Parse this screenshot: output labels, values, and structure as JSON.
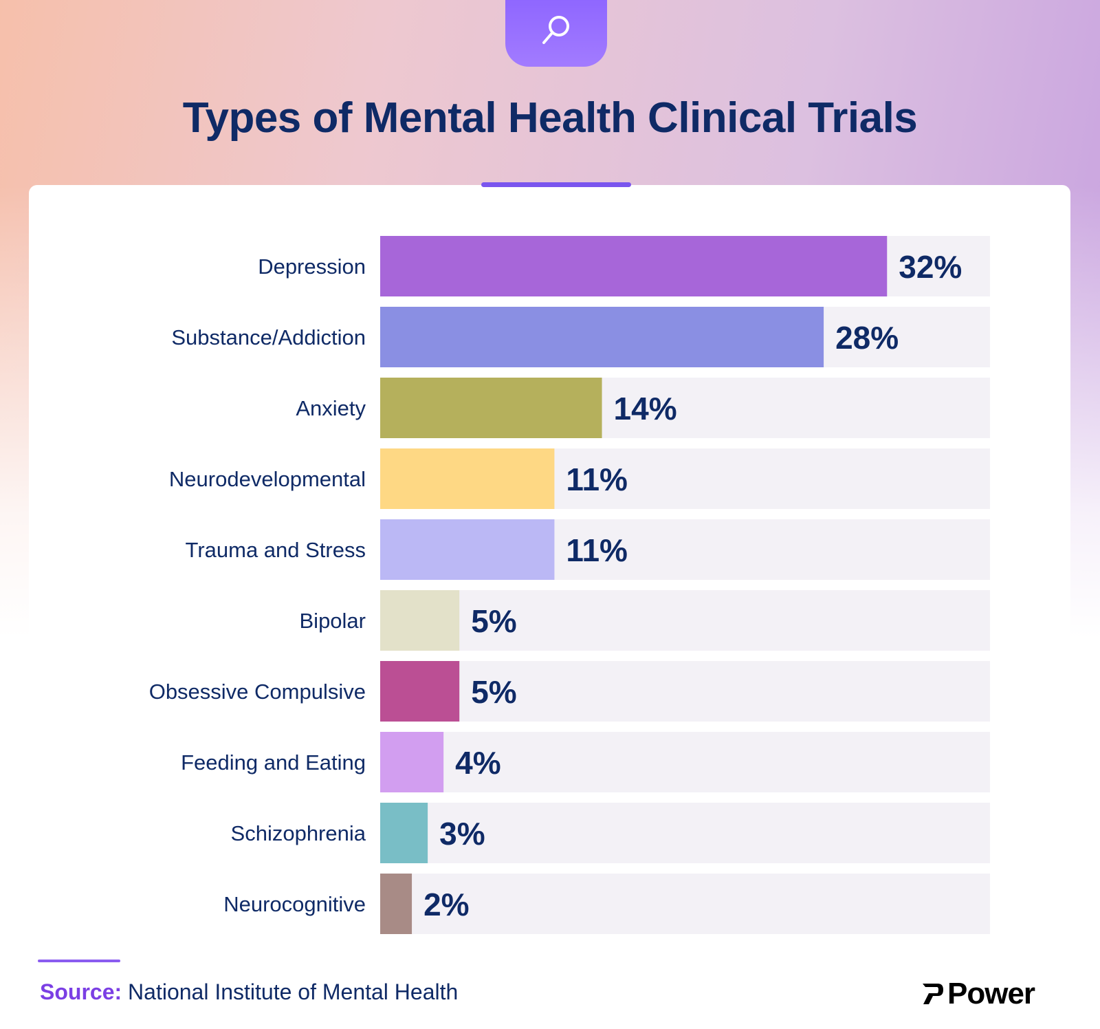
{
  "header": {
    "icon": "search-icon",
    "title": "Types of Mental Health Clinical Trials"
  },
  "chart_data": {
    "type": "bar",
    "orientation": "horizontal",
    "title": "Types of Mental Health Clinical Trials",
    "xlabel": "",
    "ylabel": "",
    "xlim": [
      0,
      38.5
    ],
    "grid": false,
    "categories": [
      "Depression",
      "Substance/Addiction",
      "Anxiety",
      "Neurodevelopmental",
      "Trauma and Stress",
      "Bipolar",
      "Obsessive Compulsive",
      "Feeding and Eating",
      "Schizophrenia",
      "Neurocognitive"
    ],
    "values": [
      32,
      28,
      14,
      11,
      11,
      5,
      5,
      4,
      3,
      2
    ],
    "value_labels": [
      "32%",
      "28%",
      "14%",
      "11%",
      "11%",
      "5%",
      "5%",
      "4%",
      "3%",
      "2%"
    ],
    "colors": [
      "#a766d9",
      "#8a8fe3",
      "#b5b05c",
      "#fed884",
      "#bbb8f5",
      "#e3e1c9",
      "#bb4f94",
      "#d29ef0",
      "#79bec6",
      "#a88b86"
    ]
  },
  "source": {
    "label": "Source:",
    "text": "National Institute of Mental Health"
  },
  "brand": {
    "icon": "power-logo-icon",
    "name": "Power"
  }
}
